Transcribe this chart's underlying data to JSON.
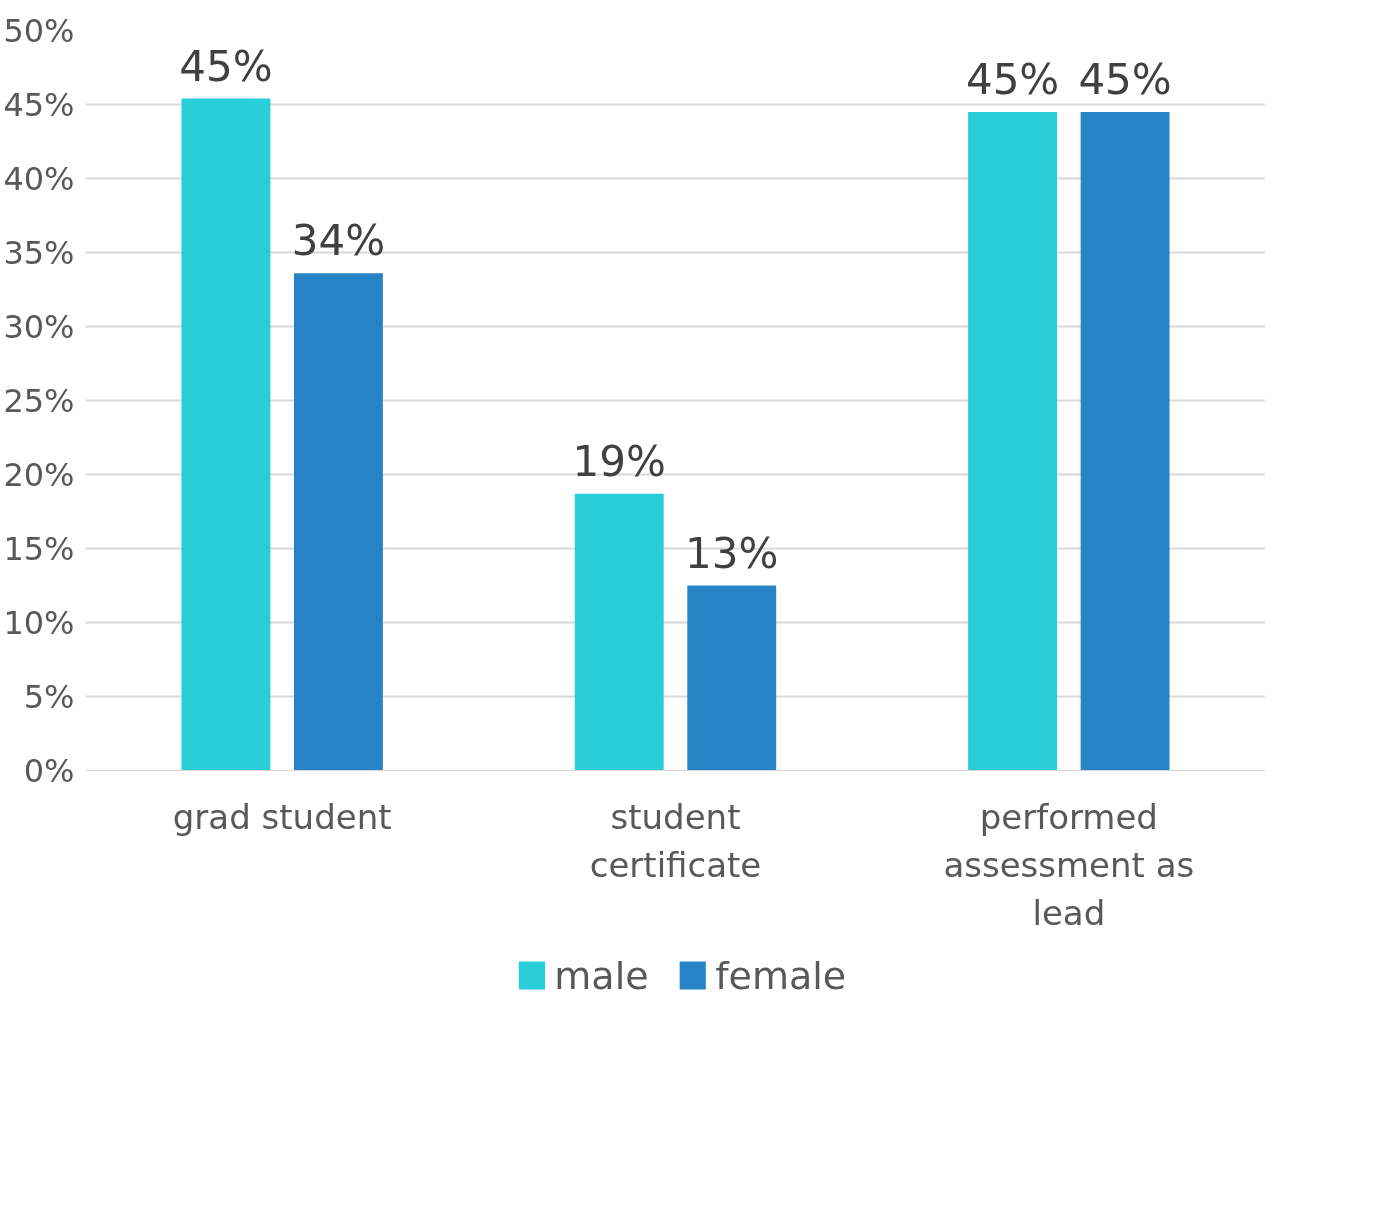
{
  "chart_data": {
    "type": "bar",
    "categories": [
      "grad student",
      "student certificate",
      "performed assessment as lead"
    ],
    "series": [
      {
        "name": "male",
        "color": "#29cdd7",
        "values": [
          45.4,
          18.7,
          44.5
        ],
        "value_labels": [
          "45%",
          "19%",
          "45%"
        ]
      },
      {
        "name": "female",
        "color": "#2683c6",
        "values": [
          33.6,
          12.5,
          44.5
        ],
        "value_labels": [
          "34%",
          "13%",
          "45%"
        ]
      }
    ],
    "ylim": [
      0,
      50
    ],
    "yticks": [
      {
        "value": 0,
        "label": "0%"
      },
      {
        "value": 5,
        "label": "5%"
      },
      {
        "value": 10,
        "label": "10%"
      },
      {
        "value": 15,
        "label": "15%"
      },
      {
        "value": 20,
        "label": "20%"
      },
      {
        "value": 25,
        "label": "25%"
      },
      {
        "value": 30,
        "label": "30%"
      },
      {
        "value": 35,
        "label": "35%"
      },
      {
        "value": 40,
        "label": "40%"
      },
      {
        "value": 45,
        "label": "45%"
      },
      {
        "value": 50,
        "label": "50%"
      }
    ],
    "grid": "y",
    "legend": "bottom"
  }
}
